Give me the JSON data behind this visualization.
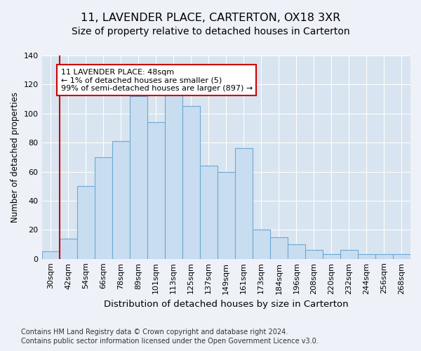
{
  "title": "11, LAVENDER PLACE, CARTERTON, OX18 3XR",
  "subtitle": "Size of property relative to detached houses in Carterton",
  "xlabel": "Distribution of detached houses by size in Carterton",
  "ylabel": "Number of detached properties",
  "footer_line1": "Contains HM Land Registry data © Crown copyright and database right 2024.",
  "footer_line2": "Contains public sector information licensed under the Open Government Licence v3.0.",
  "categories": [
    "30sqm",
    "42sqm",
    "54sqm",
    "66sqm",
    "78sqm",
    "89sqm",
    "101sqm",
    "113sqm",
    "125sqm",
    "137sqm",
    "149sqm",
    "161sqm",
    "173sqm",
    "184sqm",
    "196sqm",
    "208sqm",
    "220sqm",
    "232sqm",
    "244sqm",
    "256sqm",
    "268sqm"
  ],
  "bar_heights": [
    5,
    14,
    50,
    70,
    81,
    112,
    94,
    115,
    105,
    64,
    60,
    76,
    20,
    15,
    10,
    6,
    3,
    6,
    3,
    3,
    3
  ],
  "bar_color": "#c9ddf0",
  "bar_edge_color": "#6aaad4",
  "vline_color": "#cc0000",
  "annotation_text": "11 LAVENDER PLACE: 48sqm\n← 1% of detached houses are smaller (5)\n99% of semi-detached houses are larger (897) →",
  "annotation_box_color": "white",
  "annotation_box_edge_color": "#cc0000",
  "ylim": [
    0,
    140
  ],
  "background_color": "#eef2f8",
  "plot_background_color": "#d8e4f0",
  "grid_color": "white",
  "title_fontsize": 11.5,
  "subtitle_fontsize": 10,
  "xlabel_fontsize": 9.5,
  "ylabel_fontsize": 8.5,
  "tick_fontsize": 8,
  "footer_fontsize": 7,
  "annotation_fontsize": 8
}
